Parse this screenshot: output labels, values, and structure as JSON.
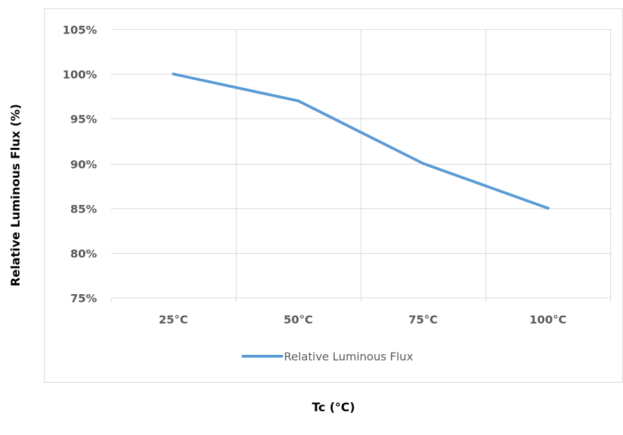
{
  "chart_data": {
    "type": "line",
    "categories": [
      "25°C",
      "50°C",
      "75°C",
      "100°C"
    ],
    "series": [
      {
        "name": "Relative Luminous Flux",
        "values": [
          100,
          97,
          90,
          85
        ],
        "color": "#5b9bd5"
      }
    ],
    "xlabel": "Tc (°C)",
    "ylabel": "Relative Luminous Flux (%)",
    "ylim": [
      75,
      105
    ],
    "yticks": [
      75,
      80,
      85,
      90,
      95,
      100,
      105
    ],
    "ytick_labels": [
      "75%",
      "80%",
      "85%",
      "90%",
      "95%",
      "100%",
      "105%"
    ],
    "grid": true,
    "legend_position": "bottom",
    "colors": {
      "gridline": "#d9d9d9",
      "plot_border": "#d9d9d9",
      "tick_text": "#595959"
    }
  }
}
